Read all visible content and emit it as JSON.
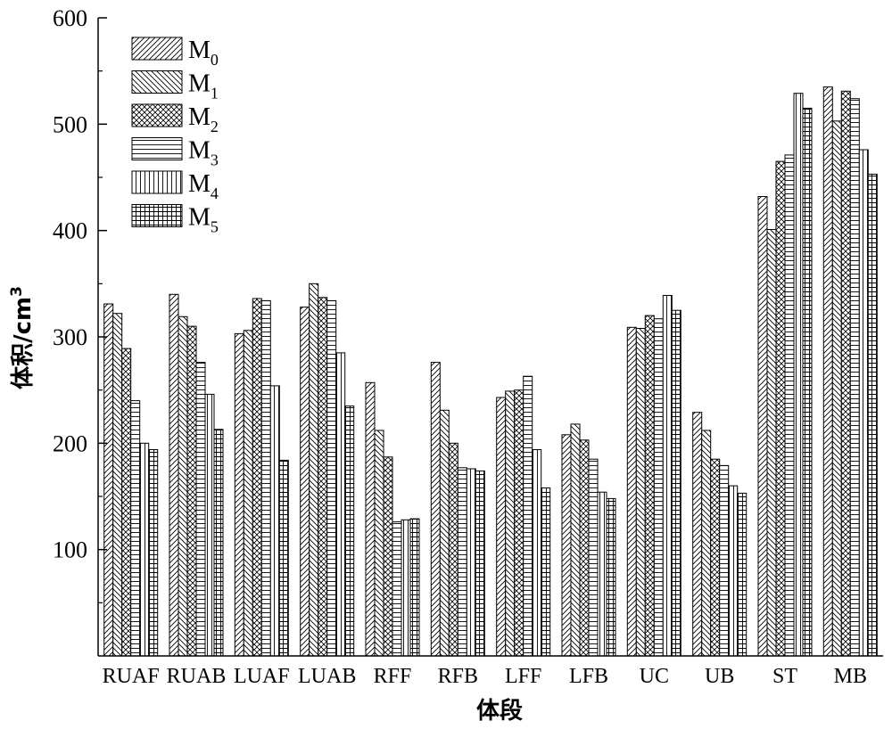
{
  "chart_data": {
    "type": "bar",
    "xlabel": "体段",
    "ylabel": "体积/cm",
    "ylabel_superscript": "3",
    "ylim": [
      0,
      600
    ],
    "yticks": [
      100,
      200,
      300,
      400,
      500,
      600
    ],
    "grid": false,
    "legend_position": "top-left",
    "categories": [
      "RUAF",
      "RUAB",
      "LUAF",
      "LUAB",
      "RFF",
      "RFB",
      "LFF",
      "LFB",
      "UC",
      "UB",
      "ST",
      "MB"
    ],
    "series": [
      {
        "name": "M",
        "subscript": "0",
        "pattern": "diag-right",
        "values": [
          331,
          340,
          303,
          328,
          257,
          276,
          243,
          208,
          309,
          229,
          432,
          535
        ]
      },
      {
        "name": "M",
        "subscript": "1",
        "pattern": "diag-left",
        "values": [
          322,
          319,
          306,
          350,
          212,
          231,
          249,
          218,
          308,
          212,
          401,
          503
        ]
      },
      {
        "name": "M",
        "subscript": "2",
        "pattern": "cross-diag",
        "values": [
          289,
          310,
          336,
          337,
          187,
          200,
          250,
          203,
          320,
          185,
          465,
          531
        ]
      },
      {
        "name": "M",
        "subscript": "3",
        "pattern": "horizontal",
        "values": [
          240,
          276,
          334,
          334,
          126,
          177,
          263,
          185,
          317,
          179,
          471,
          524
        ]
      },
      {
        "name": "M",
        "subscript": "4",
        "pattern": "vertical",
        "values": [
          200,
          246,
          254,
          285,
          128,
          176,
          194,
          154,
          339,
          160,
          529,
          476
        ]
      },
      {
        "name": "M",
        "subscript": "5",
        "pattern": "grid",
        "values": [
          194,
          213,
          184,
          235,
          129,
          174,
          158,
          148,
          325,
          153,
          515,
          453
        ]
      }
    ]
  }
}
